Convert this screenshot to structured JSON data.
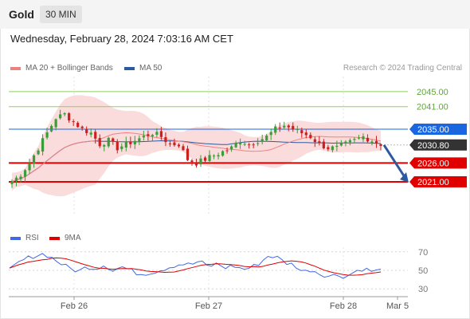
{
  "header": {
    "instrument": "Gold",
    "timeframe": "30 MIN"
  },
  "datetime": "Wednesday, February 28, 2024 7:03:16 AM CET",
  "legend": {
    "ma20": {
      "label": "MA 20 + Bollinger Bands",
      "color": "#f08080"
    },
    "ma50": {
      "label": "MA 50",
      "color": "#2d5a9e"
    }
  },
  "credit": "Research © 2024 Trading Central",
  "rsi_legend": {
    "rsi": {
      "label": "RSI",
      "color": "#4169e1"
    },
    "ma9": {
      "label": "9MA",
      "color": "#dd0000"
    }
  },
  "colors": {
    "up": "#3a9d3a",
    "down": "#cc2020",
    "band": "#fbdcdc",
    "ma20": "#f08080",
    "ma50": "#2d5a9e"
  },
  "chart_data": [
    {
      "type": "candlestick",
      "ylim": [
        2012.5,
        2049
      ],
      "x_labels": [
        "Feb 26",
        "Feb 27",
        "Feb 28",
        "Mar 5"
      ],
      "levels": [
        {
          "value": 2045.0,
          "label": "2045.00",
          "style": "target",
          "color": "#8fcf5a"
        },
        {
          "value": 2041.0,
          "label": "2041.00",
          "style": "target",
          "color": "#8fcf5a"
        },
        {
          "value": 2035.0,
          "label": "2035.00",
          "style": "pivot",
          "color": "#1a66e0"
        },
        {
          "value": 2030.8,
          "label": "2030.80",
          "style": "last",
          "color": "#333333"
        },
        {
          "value": 2026.0,
          "label": "2026.00",
          "style": "support",
          "color": "#e00000"
        },
        {
          "value": 2021.0,
          "label": "2021.00",
          "style": "support",
          "color": "#e00000"
        }
      ],
      "forecast_arrow": {
        "from": 2030.8,
        "to": 2021.0,
        "color": "#2d5a9e"
      },
      "anchors": [
        2021,
        2023,
        2026,
        2030,
        2034,
        2038,
        2039,
        2037,
        2035,
        2034,
        2031,
        2032,
        2030,
        2031,
        2032,
        2033,
        2034,
        2033,
        2031,
        2031,
        2027,
        2026,
        2027,
        2028,
        2029,
        2030,
        2032,
        2031,
        2032,
        2033,
        2035,
        2036,
        2035,
        2034,
        2033,
        2031,
        2030,
        2030,
        2031,
        2032,
        2033,
        2032,
        2031
      ]
    },
    {
      "type": "line",
      "title": "RSI",
      "ylim": [
        25,
        75
      ],
      "y_ticks": [
        "70",
        "50",
        "30"
      ],
      "anchors": [
        50,
        58,
        63,
        66,
        68,
        63,
        57,
        52,
        49,
        54,
        52,
        56,
        50,
        54,
        50,
        46,
        47,
        49,
        52,
        55,
        57,
        56,
        60,
        54,
        57,
        53,
        55,
        51,
        53,
        58,
        66,
        64,
        58,
        56,
        48,
        51,
        46,
        44,
        45,
        43,
        49,
        52,
        49,
        50
      ]
    }
  ]
}
